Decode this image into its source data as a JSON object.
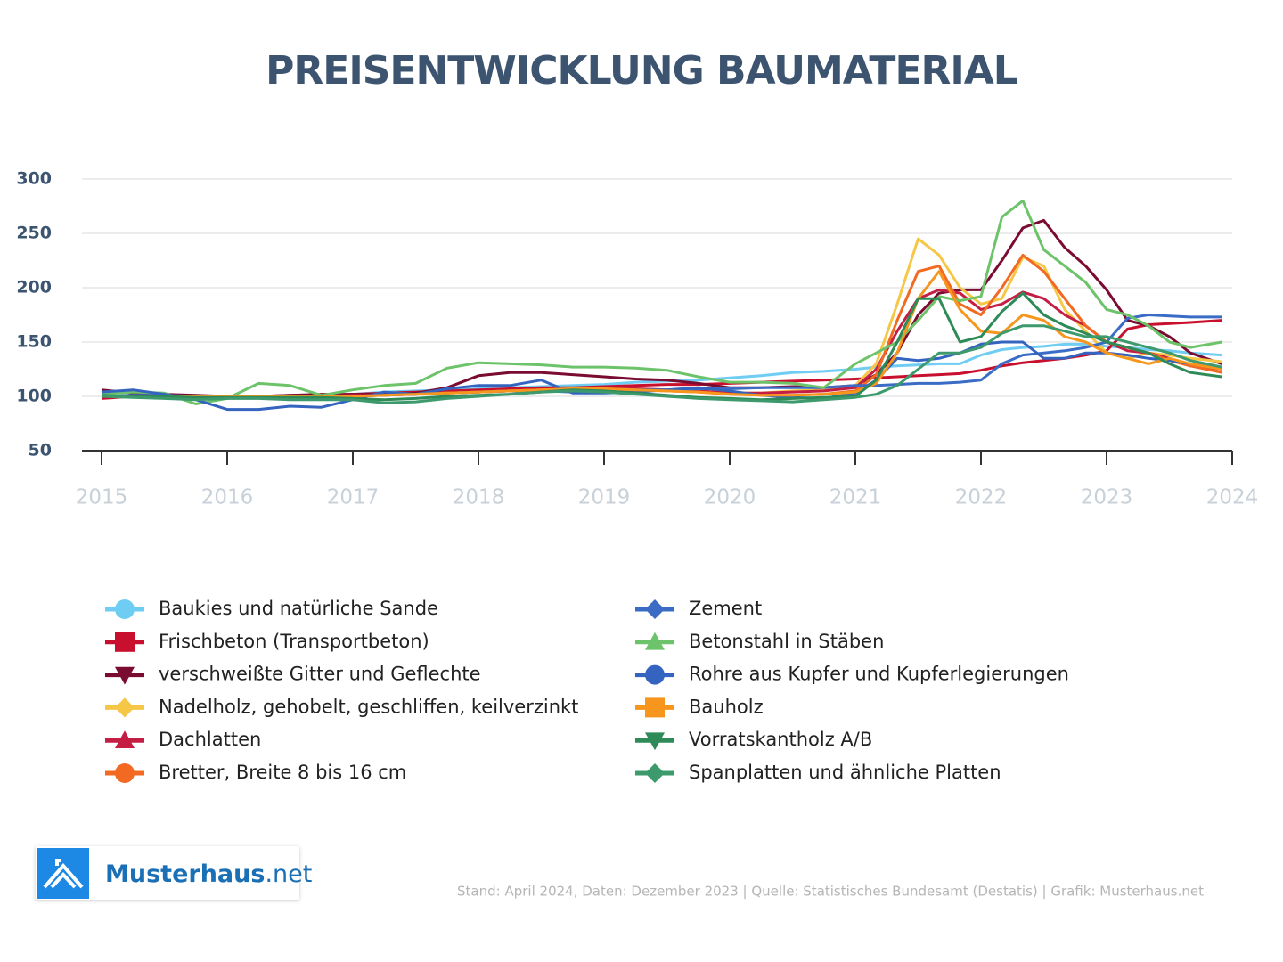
{
  "chart_data": {
    "type": "line",
    "title": "PREISENTWICKLUNG BAUMATERIAL",
    "x": [
      2015,
      2015.25,
      2015.5,
      2015.75,
      2016,
      2016.25,
      2016.5,
      2016.75,
      2017,
      2017.25,
      2017.5,
      2017.75,
      2018,
      2018.25,
      2018.5,
      2018.75,
      2019,
      2019.25,
      2019.5,
      2019.75,
      2020,
      2020.25,
      2020.5,
      2020.75,
      2021,
      2021.167,
      2021.333,
      2021.5,
      2021.667,
      2021.833,
      2022,
      2022.167,
      2022.333,
      2022.5,
      2022.667,
      2022.833,
      2023,
      2023.167,
      2023.333,
      2023.5,
      2023.667,
      2023.917
    ],
    "xlim": [
      2015,
      2024
    ],
    "xticks": [
      2015,
      2016,
      2017,
      2018,
      2019,
      2020,
      2021,
      2022,
      2023,
      2024
    ],
    "ylim": [
      50,
      300
    ],
    "yticks": [
      50,
      100,
      150,
      200,
      250,
      300
    ],
    "grid": true,
    "series": [
      {
        "name": "Baukies und natürliche Sande",
        "color": "#6fcdf3",
        "marker": "circle",
        "values": [
          100,
          100,
          100,
          100,
          100,
          100,
          100,
          101,
          102,
          104,
          105,
          106,
          107,
          108,
          109,
          110,
          111,
          113,
          114,
          115,
          117,
          119,
          122,
          123,
          125,
          127,
          128,
          129,
          130,
          130,
          138,
          143,
          145,
          146,
          148,
          148,
          146,
          145,
          143,
          142,
          140,
          138
        ]
      },
      {
        "name": "Frischbeton (Transportbeton)",
        "color": "#c8102e",
        "marker": "square",
        "values": [
          98,
          100,
          100,
          100,
          100,
          100,
          101,
          101,
          102,
          103,
          104,
          105,
          106,
          107,
          108,
          108,
          109,
          110,
          111,
          111,
          112,
          113,
          114,
          115,
          116,
          117,
          118,
          119,
          120,
          121,
          124,
          128,
          131,
          133,
          135,
          138,
          142,
          162,
          166,
          167,
          168,
          170
        ]
      },
      {
        "name": "verschweißte Gitter und Geflechte",
        "color": "#7a0c32",
        "marker": "triangle-down",
        "values": [
          106,
          103,
          102,
          101,
          100,
          100,
          101,
          102,
          102,
          102,
          103,
          108,
          119,
          122,
          122,
          120,
          118,
          116,
          115,
          112,
          108,
          108,
          109,
          108,
          110,
          120,
          140,
          175,
          195,
          198,
          198,
          225,
          255,
          262,
          237,
          220,
          198,
          170,
          165,
          155,
          140,
          130
        ]
      },
      {
        "name": "Nadelholz, gehobelt, geschliffen, keilverzinkt",
        "color": "#f6c646",
        "marker": "diamond",
        "values": [
          100,
          100,
          100,
          98,
          99,
          99,
          100,
          100,
          100,
          101,
          102,
          103,
          104,
          105,
          106,
          106,
          107,
          107,
          106,
          104,
          103,
          103,
          105,
          106,
          110,
          130,
          185,
          245,
          230,
          200,
          185,
          190,
          228,
          220,
          180,
          160,
          140,
          135,
          140,
          138,
          135,
          132
        ]
      },
      {
        "name": "Dachlatten",
        "color": "#c41e45",
        "marker": "triangle-up",
        "values": [
          100,
          100,
          100,
          100,
          100,
          100,
          100,
          100,
          101,
          101,
          102,
          103,
          104,
          105,
          106,
          107,
          107,
          107,
          106,
          105,
          103,
          103,
          104,
          105,
          108,
          125,
          160,
          190,
          198,
          195,
          180,
          185,
          196,
          190,
          175,
          165,
          150,
          142,
          140,
          135,
          128,
          125
        ]
      },
      {
        "name": "Bretter, Breite 8 bis 16 cm",
        "color": "#f26a21",
        "marker": "circle",
        "values": [
          100,
          100,
          100,
          100,
          100,
          100,
          100,
          100,
          100,
          101,
          102,
          103,
          104,
          105,
          106,
          107,
          107,
          106,
          105,
          104,
          102,
          101,
          101,
          102,
          105,
          120,
          170,
          215,
          220,
          185,
          175,
          200,
          230,
          215,
          190,
          165,
          150,
          145,
          140,
          133,
          128,
          122
        ]
      },
      {
        "name": "Zement",
        "color": "#3a6cc6",
        "marker": "diamond",
        "values": [
          100,
          101,
          101,
          100,
          100,
          100,
          100,
          100,
          100,
          101,
          102,
          103,
          104,
          105,
          105,
          104,
          105,
          106,
          106,
          107,
          107,
          108,
          108,
          108,
          110,
          110,
          111,
          112,
          112,
          113,
          115,
          130,
          138,
          140,
          142,
          145,
          150,
          172,
          175,
          174,
          173,
          173
        ]
      },
      {
        "name": "Betonstahl in Stäben",
        "color": "#6cc36a",
        "marker": "triangle-up",
        "values": [
          102,
          104,
          103,
          93,
          98,
          112,
          110,
          101,
          106,
          110,
          112,
          126,
          131,
          130,
          129,
          127,
          127,
          126,
          124,
          118,
          113,
          113,
          112,
          108,
          130,
          140,
          150,
          170,
          192,
          188,
          192,
          265,
          280,
          235,
          220,
          205,
          180,
          175,
          165,
          150,
          145,
          150
        ]
      },
      {
        "name": "Rohre aus Kupfer und Kupferlegierungen",
        "color": "#3464c0",
        "marker": "circle",
        "values": [
          104,
          106,
          102,
          97,
          88,
          88,
          91,
          90,
          97,
          104,
          102,
          107,
          110,
          110,
          115,
          103,
          103,
          104,
          106,
          108,
          105,
          101,
          99,
          98,
          103,
          115,
          135,
          133,
          135,
          140,
          148,
          150,
          150,
          135,
          135,
          140,
          140,
          138,
          135,
          133,
          130,
          127
        ]
      },
      {
        "name": "Bauholz",
        "color": "#f7961c",
        "marker": "square",
        "values": [
          100,
          100,
          100,
          100,
          100,
          100,
          100,
          100,
          100,
          101,
          102,
          103,
          104,
          105,
          106,
          107,
          107,
          106,
          105,
          104,
          102,
          101,
          101,
          102,
          104,
          112,
          140,
          190,
          215,
          180,
          160,
          158,
          175,
          170,
          155,
          150,
          140,
          135,
          130,
          135,
          130,
          125
        ]
      },
      {
        "name": "Vorratskantholz A/B",
        "color": "#2e8b57",
        "marker": "triangle-down",
        "values": [
          101,
          100,
          100,
          99,
          99,
          99,
          99,
          99,
          98,
          97,
          98,
          100,
          101,
          102,
          104,
          106,
          105,
          103,
          101,
          99,
          98,
          97,
          98,
          99,
          100,
          115,
          150,
          190,
          190,
          150,
          155,
          178,
          195,
          175,
          165,
          158,
          150,
          145,
          140,
          130,
          122,
          118
        ]
      },
      {
        "name": "Spanplatten und ähnliche Platten",
        "color": "#3d9a6c",
        "marker": "diamond",
        "values": [
          100,
          99,
          98,
          97,
          98,
          98,
          97,
          97,
          97,
          94,
          95,
          98,
          100,
          102,
          104,
          105,
          104,
          102,
          100,
          98,
          97,
          96,
          95,
          97,
          99,
          102,
          110,
          125,
          140,
          140,
          145,
          158,
          165,
          165,
          160,
          155,
          155,
          150,
          145,
          140,
          133,
          127
        ]
      }
    ],
    "source": "Stand: April 2024, Daten: Dezember 2023 | Quelle: Statistisches Bundesamt (Destatis) | Grafik: Musterhaus.net"
  },
  "brand": {
    "name": "Musterhaus",
    "suffix": ".net"
  }
}
